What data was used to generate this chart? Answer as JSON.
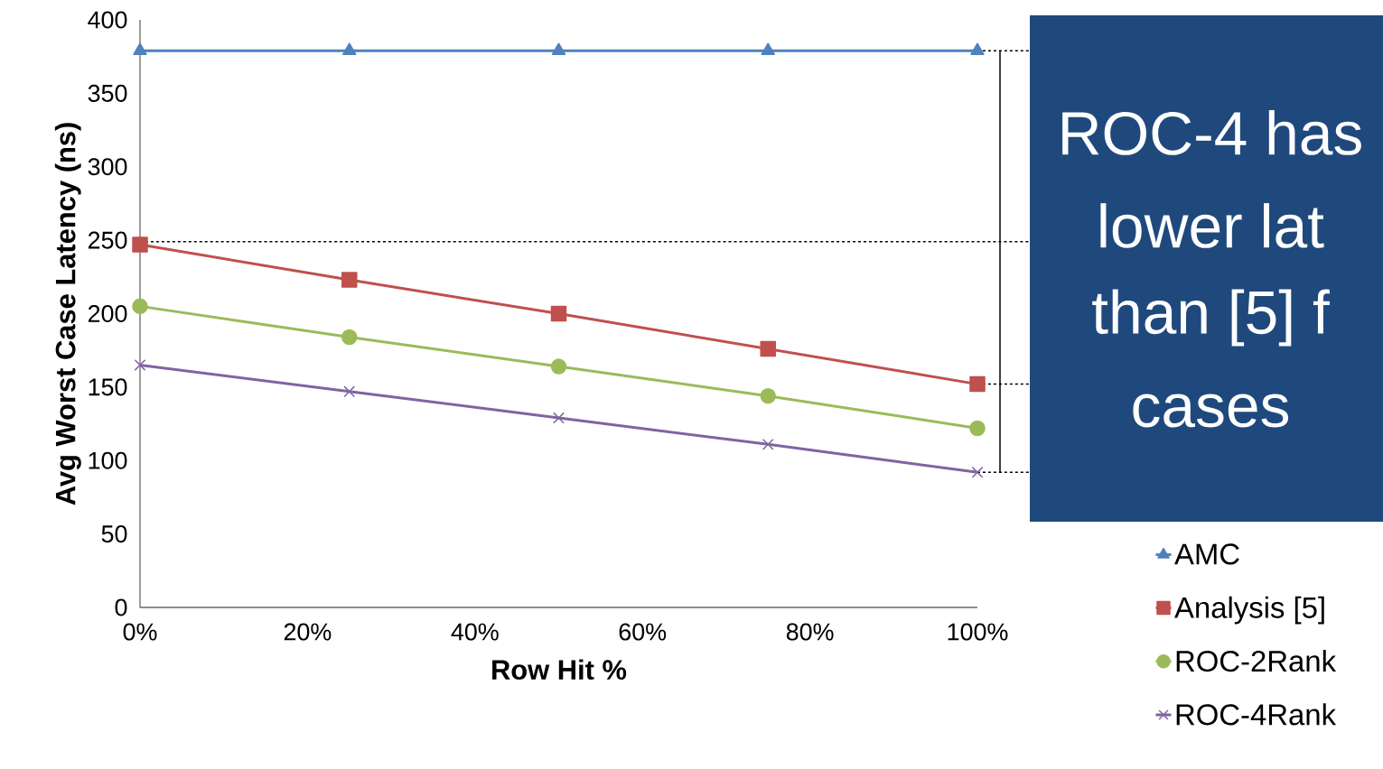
{
  "chart_data": {
    "type": "line",
    "xlabel": "Row Hit %",
    "ylabel": "Avg Worst Case Latency (ns)",
    "x": [
      0,
      25,
      50,
      75,
      100
    ],
    "xlim": [
      0,
      100
    ],
    "xticks": [
      {
        "value": 0,
        "label": "0%"
      },
      {
        "value": 20,
        "label": "20%"
      },
      {
        "value": 40,
        "label": "40%"
      },
      {
        "value": 60,
        "label": "60%"
      },
      {
        "value": 80,
        "label": "80%"
      },
      {
        "value": 100,
        "label": "100%"
      }
    ],
    "ylim": [
      0,
      400
    ],
    "yticks": [
      0,
      50,
      100,
      150,
      200,
      250,
      300,
      350,
      400
    ],
    "series": [
      {
        "name": "AMC",
        "color": "#4f81bd",
        "marker": "triangle",
        "values": [
          379,
          379,
          379,
          379,
          379
        ]
      },
      {
        "name": "Analysis [5]",
        "color": "#c0504d",
        "marker": "square",
        "values": [
          247,
          223,
          200,
          176,
          152
        ]
      },
      {
        "name": "ROC-2Rank",
        "color": "#9bbb59",
        "marker": "circle",
        "values": [
          205,
          184,
          164,
          144,
          122
        ]
      },
      {
        "name": "ROC-4Rank",
        "color": "#8064a2",
        "marker": "cross",
        "values": [
          165,
          147,
          129,
          111,
          92
        ]
      }
    ],
    "legend": "right",
    "ref_lines": [
      {
        "axis": "y",
        "value": 249,
        "line_style": "dashed"
      }
    ],
    "annotations": [
      "ROC-4 has",
      "lower lat",
      "than [5] f",
      "cases"
    ]
  }
}
